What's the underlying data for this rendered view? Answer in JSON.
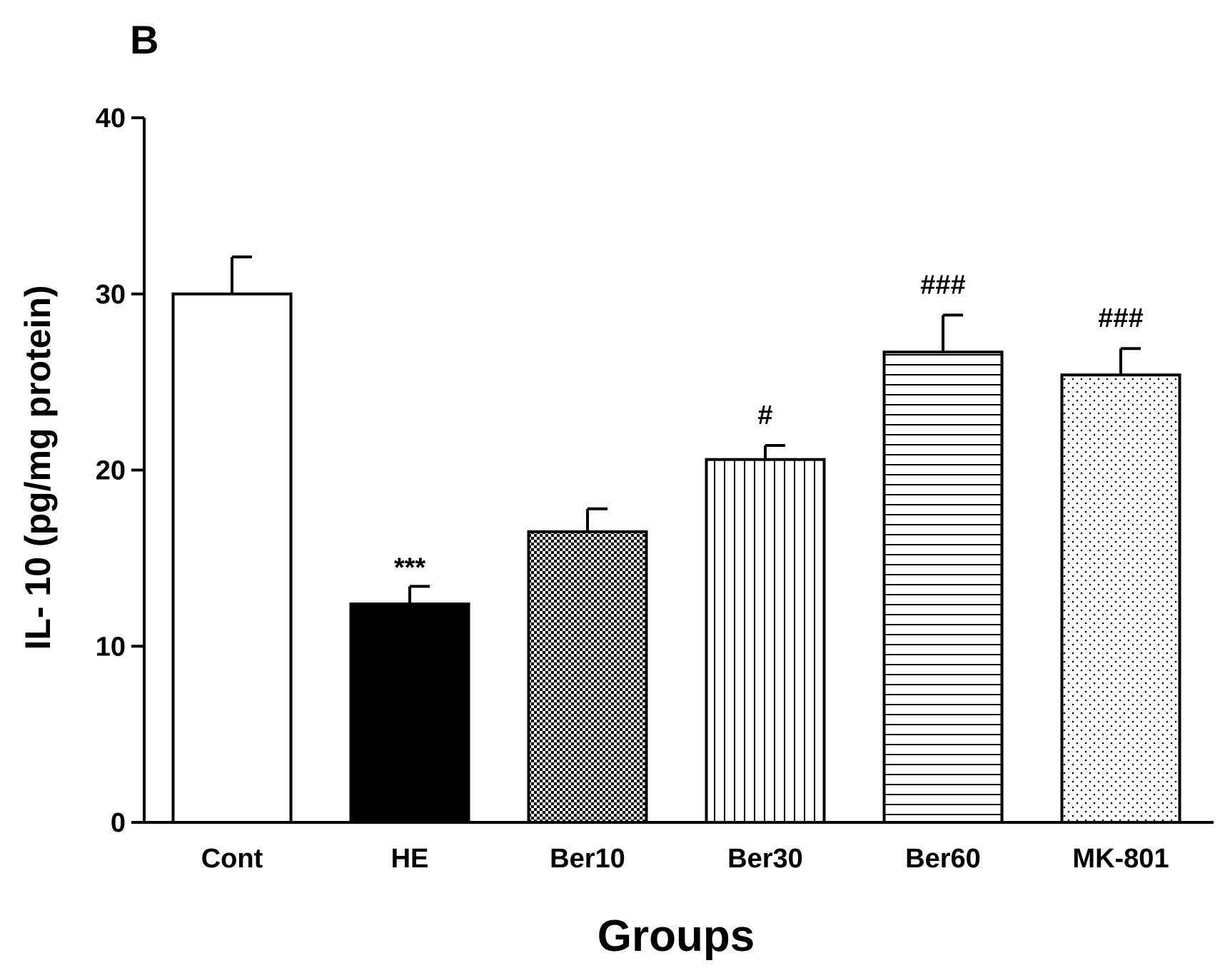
{
  "panel_label": "B",
  "chart_data": {
    "type": "bar",
    "title": "",
    "xlabel": "Groups",
    "ylabel": "IL- 10 (pg/mg protein)",
    "ylim": [
      0,
      40
    ],
    "yticks": [
      0,
      10,
      20,
      30,
      40
    ],
    "categories": [
      "Cont",
      "HE",
      "Ber10",
      "Ber30",
      "Ber60",
      "MK-801"
    ],
    "values": [
      30.0,
      12.4,
      16.5,
      20.6,
      26.7,
      25.4
    ],
    "errors": [
      2.1,
      1.0,
      1.3,
      0.8,
      2.1,
      1.5
    ],
    "annotations": [
      "",
      "***",
      "",
      "#",
      "###",
      "###"
    ],
    "fills": [
      "white",
      "solid-black",
      "checkerboard",
      "vertical-lines",
      "horizontal-lines",
      "dots"
    ],
    "grid": false
  }
}
